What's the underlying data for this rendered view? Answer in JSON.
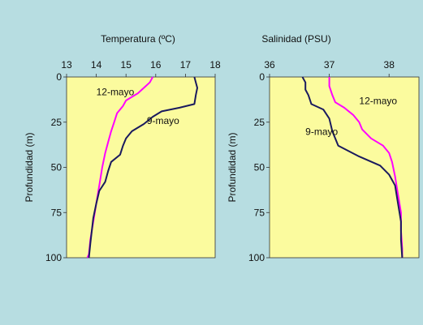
{
  "background_color": "#b7dde1",
  "plot_background_color": "#fbfb9e",
  "chart_data": [
    {
      "type": "line",
      "title": "Temperatura (ºC)",
      "xlabel": "",
      "ylabel": "Profundidad (m)",
      "xlim": [
        13,
        18
      ],
      "ylim": [
        0,
        100
      ],
      "y_inverted": true,
      "x_axis_position": "top",
      "x_ticks": [
        13,
        14,
        15,
        16,
        17,
        18
      ],
      "y_ticks": [
        0,
        25,
        50,
        75,
        100
      ],
      "grid": false,
      "series": [
        {
          "name": "12-mayo",
          "color": "#ff00ff",
          "points": [
            [
              15.9,
              0
            ],
            [
              15.8,
              3
            ],
            [
              15.6,
              6
            ],
            [
              15.4,
              9
            ],
            [
              15.2,
              11
            ],
            [
              15.0,
              13
            ],
            [
              14.9,
              16
            ],
            [
              14.7,
              20
            ],
            [
              14.6,
              25
            ],
            [
              14.5,
              30
            ],
            [
              14.4,
              36
            ],
            [
              14.3,
              42
            ],
            [
              14.2,
              50
            ],
            [
              14.1,
              60
            ],
            [
              14.0,
              70
            ],
            [
              13.9,
              80
            ],
            [
              13.8,
              90
            ],
            [
              13.75,
              98
            ],
            [
              13.7,
              100
            ]
          ]
        },
        {
          "name": "9-mayo",
          "color": "#1a1a5e",
          "points": [
            [
              17.3,
              0
            ],
            [
              17.35,
              3
            ],
            [
              17.4,
              6
            ],
            [
              17.35,
              10
            ],
            [
              17.3,
              15
            ],
            [
              16.8,
              17
            ],
            [
              16.2,
              19
            ],
            [
              15.9,
              22
            ],
            [
              15.6,
              26
            ],
            [
              15.2,
              30
            ],
            [
              15.0,
              34
            ],
            [
              14.9,
              38
            ],
            [
              14.8,
              43
            ],
            [
              14.5,
              47
            ],
            [
              14.4,
              52
            ],
            [
              14.3,
              58
            ],
            [
              14.1,
              63
            ],
            [
              14.0,
              70
            ],
            [
              13.9,
              78
            ],
            [
              13.85,
              85
            ],
            [
              13.8,
              92
            ],
            [
              13.75,
              100
            ]
          ]
        }
      ],
      "annotations": [
        {
          "text": "12-mayo",
          "x": 14.0,
          "y": 10
        },
        {
          "text": "9-mayo",
          "x": 15.7,
          "y": 26
        }
      ]
    },
    {
      "type": "line",
      "title": "Salinidad (PSU)",
      "xlabel": "",
      "ylabel": "Profundidad (m)",
      "xlim": [
        36,
        38.5
      ],
      "ylim": [
        0,
        100
      ],
      "y_inverted": true,
      "x_axis_position": "top",
      "x_ticks": [
        36,
        37,
        38
      ],
      "y_ticks": [
        0,
        25,
        50,
        75,
        100
      ],
      "grid": false,
      "series": [
        {
          "name": "12-mayo",
          "color": "#ff00ff",
          "points": [
            [
              37.0,
              0
            ],
            [
              37.0,
              5
            ],
            [
              37.05,
              10
            ],
            [
              37.1,
              14
            ],
            [
              37.25,
              17
            ],
            [
              37.4,
              21
            ],
            [
              37.5,
              25
            ],
            [
              37.55,
              29
            ],
            [
              37.7,
              34
            ],
            [
              37.9,
              38
            ],
            [
              38.0,
              42
            ],
            [
              38.05,
              47
            ],
            [
              38.1,
              55
            ],
            [
              38.15,
              65
            ],
            [
              38.2,
              75
            ],
            [
              38.2,
              85
            ],
            [
              38.22,
              95
            ],
            [
              38.22,
              100
            ]
          ]
        },
        {
          "name": "9-mayo",
          "color": "#1a1a5e",
          "points": [
            [
              36.55,
              0
            ],
            [
              36.6,
              3
            ],
            [
              36.6,
              7
            ],
            [
              36.65,
              10
            ],
            [
              36.7,
              15
            ],
            [
              36.9,
              18
            ],
            [
              37.0,
              23
            ],
            [
              37.05,
              30
            ],
            [
              37.15,
              38
            ],
            [
              37.5,
              44
            ],
            [
              37.85,
              49
            ],
            [
              38.0,
              54
            ],
            [
              38.1,
              60
            ],
            [
              38.15,
              70
            ],
            [
              38.2,
              80
            ],
            [
              38.2,
              90
            ],
            [
              38.22,
              100
            ]
          ]
        }
      ],
      "annotations": [
        {
          "text": "12-mayo",
          "x": 37.5,
          "y": 15
        },
        {
          "text": "9-mayo",
          "x": 36.6,
          "y": 32
        }
      ]
    }
  ]
}
